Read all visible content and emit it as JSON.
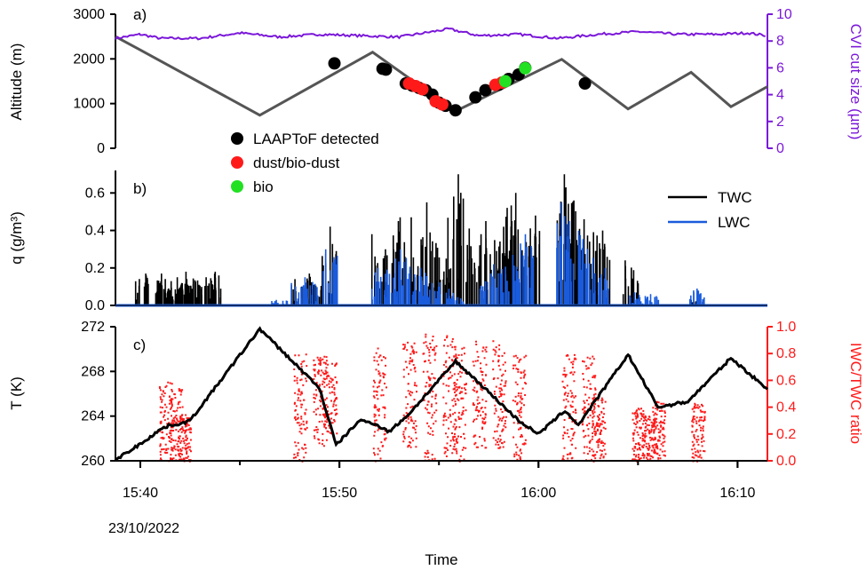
{
  "chart_data": [
    {
      "panel_label": "a)",
      "type": "line",
      "ylabel": "Altitude (m)",
      "ylim": [
        0,
        3000
      ],
      "yticks": [
        0,
        1000,
        2000,
        3000
      ],
      "y2label": "CVI cut size (µm)",
      "y2lim": [
        0,
        10
      ],
      "y2ticks": [
        0,
        2,
        4,
        6,
        8,
        10
      ],
      "colors": {
        "altitude": "#555555",
        "cvi": "#7b17d9",
        "laaptof": "#000000",
        "dust": "#ff1a1a",
        "bio": "#22e022"
      },
      "series": [
        {
          "name": "Altitude",
          "axis": "left",
          "x": [
            "15:38:45",
            "15:40:00",
            "15:46:00",
            "15:51:40",
            "15:55:50",
            "16:01:10",
            "16:04:30",
            "16:07:40",
            "16:09:40",
            "16:11:30"
          ],
          "y": [
            2500,
            2200,
            740,
            2150,
            830,
            1990,
            880,
            1700,
            930,
            1380
          ]
        },
        {
          "name": "CVI cut size",
          "axis": "right",
          "x": [
            "15:38:45",
            "15:40:00",
            "15:41:00",
            "15:43:00",
            "15:45:00",
            "15:47:00",
            "15:49:00",
            "15:51:00",
            "15:53:00",
            "15:55:30",
            "15:57:00",
            "15:59:00",
            "16:01:00",
            "16:03:00",
            "16:05:00",
            "16:07:00",
            "16:09:00",
            "16:10:30",
            "16:11:30"
          ],
          "y": [
            8.2,
            8.5,
            8.2,
            8.2,
            8.6,
            8.3,
            8.5,
            8.4,
            8.3,
            8.9,
            8.4,
            8.5,
            8.2,
            8.5,
            8.7,
            8.5,
            8.5,
            8.6,
            8.4
          ]
        }
      ],
      "markers": [
        {
          "name": "LAAPToF detected",
          "points": [
            [
              "15:49:45",
              1900
            ],
            [
              "15:52:10",
              1780
            ],
            [
              "15:52:20",
              1760
            ],
            [
              "15:53:20",
              1450
            ],
            [
              "15:53:40",
              1400
            ],
            [
              "15:54:00",
              1350
            ],
            [
              "15:54:20",
              1300
            ],
            [
              "15:54:40",
              1200
            ],
            [
              "15:55:00",
              1020
            ],
            [
              "15:55:20",
              950
            ],
            [
              "15:55:50",
              850
            ],
            [
              "15:56:50",
              1140
            ],
            [
              "15:57:20",
              1300
            ],
            [
              "15:58:00",
              1420
            ],
            [
              "15:58:30",
              1550
            ],
            [
              "15:59:00",
              1650
            ],
            [
              "15:59:20",
              1800
            ],
            [
              "16:02:20",
              1450
            ]
          ]
        },
        {
          "name": "dust/bio-dust",
          "points": [
            [
              "15:53:30",
              1450
            ],
            [
              "15:53:50",
              1390
            ],
            [
              "15:54:10",
              1320
            ],
            [
              "15:54:50",
              1050
            ],
            [
              "15:55:10",
              980
            ],
            [
              "15:57:50",
              1420
            ],
            [
              "15:58:10",
              1470
            ]
          ]
        },
        {
          "name": "bio",
          "points": [
            [
              "15:58:20",
              1500
            ],
            [
              "15:59:20",
              1790
            ]
          ]
        }
      ]
    },
    {
      "panel_label": "b)",
      "type": "line",
      "ylabel": "q (g/m³)",
      "ylim": [
        0,
        0.72
      ],
      "yticks": [
        "0.0",
        "0.2",
        "0.4",
        "0.6"
      ],
      "series": [
        {
          "name": "TWC",
          "bursts": [
            [
              "15:40:10",
              0.17
            ],
            [
              "15:40:40",
              0.16
            ],
            [
              "15:41:10",
              0.13
            ],
            [
              "15:41:20",
              0.17
            ],
            [
              "15:41:40",
              0.12
            ],
            [
              "15:42:00",
              0.15
            ],
            [
              "15:42:20",
              0.13
            ],
            [
              "15:42:40",
              0.18
            ],
            [
              "15:42:55",
              0.15
            ],
            [
              "15:43:20",
              0.17
            ],
            [
              "15:43:40",
              0.18
            ],
            [
              "15:48:00",
              0.14
            ],
            [
              "15:48:40",
              0.17
            ],
            [
              "15:49:30",
              0.42
            ],
            [
              "15:52:00",
              0.38
            ],
            [
              "15:52:40",
              0.47
            ],
            [
              "15:53:20",
              0.45
            ],
            [
              "15:54:00",
              0.55
            ],
            [
              "15:54:40",
              0.39
            ],
            [
              "15:55:20",
              0.25
            ],
            [
              "15:55:50",
              0.7
            ],
            [
              "15:56:30",
              0.41
            ],
            [
              "15:57:00",
              0.38
            ],
            [
              "15:57:40",
              0.45
            ],
            [
              "15:58:20",
              0.42
            ],
            [
              "15:58:40",
              0.6
            ],
            [
              "15:59:00",
              0.45
            ],
            [
              "15:59:40",
              0.48
            ],
            [
              "16:01:20",
              0.7
            ],
            [
              "16:01:40",
              0.63
            ],
            [
              "16:02:00",
              0.56
            ],
            [
              "16:02:40",
              0.46
            ],
            [
              "16:03:10",
              0.4
            ],
            [
              "16:04:40",
              0.24
            ],
            [
              "16:08:00",
              0.03
            ]
          ]
        },
        {
          "name": "LWC",
          "bursts": [
            [
              "15:47:00",
              0.03
            ],
            [
              "15:48:00",
              0.12
            ],
            [
              "15:48:40",
              0.15
            ],
            [
              "15:49:30",
              0.3
            ],
            [
              "15:52:00",
              0.2
            ],
            [
              "15:52:40",
              0.25
            ],
            [
              "15:53:20",
              0.3
            ],
            [
              "15:54:00",
              0.2
            ],
            [
              "15:54:40",
              0.15
            ],
            [
              "15:55:20",
              0.1
            ],
            [
              "15:55:50",
              0.05
            ],
            [
              "15:57:20",
              0.17
            ],
            [
              "15:58:00",
              0.22
            ],
            [
              "15:58:40",
              0.27
            ],
            [
              "15:59:20",
              0.38
            ],
            [
              "16:01:20",
              0.55
            ],
            [
              "16:01:50",
              0.45
            ],
            [
              "16:02:30",
              0.35
            ],
            [
              "16:03:10",
              0.2
            ],
            [
              "16:05:00",
              0.07
            ],
            [
              "16:05:40",
              0.06
            ],
            [
              "16:08:00",
              0.09
            ]
          ]
        }
      ]
    },
    {
      "panel_label": "c)",
      "type": "line",
      "ylabel": "T (K)",
      "ylim": [
        260,
        272
      ],
      "yticks": [
        260,
        264,
        268,
        272
      ],
      "y2label": "IWC/TWC ratio",
      "y2lim": [
        0,
        1
      ],
      "y2ticks": [
        "0.0",
        "0.2",
        "0.4",
        "0.6",
        "0.8",
        "1.0"
      ],
      "xlabel": "Time",
      "xticks": [
        "15:40",
        "15:50",
        "16:00",
        "16:10"
      ],
      "date_label": "23/10/2022",
      "series": [
        {
          "name": "T",
          "axis": "left",
          "x": [
            "15:38:45",
            "15:40:00",
            "15:41:00",
            "15:41:30",
            "15:42:00",
            "15:42:30",
            "15:46:00",
            "15:49:00",
            "15:49:50",
            "15:51:00",
            "15:51:40",
            "15:52:30",
            "15:53:30",
            "15:55:50",
            "15:57:00",
            "15:59:00",
            "16:00:00",
            "16:01:20",
            "16:02:00",
            "16:04:30",
            "16:06:00",
            "16:07:30",
            "16:09:40",
            "16:11:30"
          ],
          "y": [
            260.1,
            261.5,
            262.8,
            263.2,
            263.3,
            263.6,
            271.8,
            266.5,
            261.4,
            263.6,
            263.4,
            262.6,
            264.2,
            268.9,
            267.0,
            263.6,
            262.4,
            264.5,
            263.2,
            269.5,
            264.8,
            265.3,
            269.2,
            266.4
          ]
        },
        {
          "name": "IWC/TWC ratio",
          "axis": "right",
          "mark": "scatter",
          "clusters": [
            [
              "15:41:15",
              0.0,
              0.6
            ],
            [
              "15:41:45",
              0.0,
              0.55
            ],
            [
              "15:42:10",
              0.0,
              0.35
            ],
            [
              "15:48:00",
              0.0,
              0.8
            ],
            [
              "15:49:00",
              0.1,
              0.8
            ],
            [
              "15:49:30",
              0.2,
              0.75
            ],
            [
              "15:52:00",
              0.0,
              0.85
            ],
            [
              "15:53:30",
              0.1,
              0.9
            ],
            [
              "15:54:30",
              0.0,
              0.95
            ],
            [
              "15:55:30",
              0.0,
              0.95
            ],
            [
              "15:56:00",
              0.0,
              0.85
            ],
            [
              "15:57:00",
              0.1,
              0.9
            ],
            [
              "15:58:00",
              0.1,
              0.9
            ],
            [
              "15:59:00",
              0.0,
              0.8
            ],
            [
              "16:01:30",
              0.0,
              0.8
            ],
            [
              "16:02:30",
              0.0,
              0.8
            ],
            [
              "16:03:00",
              0.0,
              0.5
            ],
            [
              "16:05:00",
              0.0,
              0.4
            ],
            [
              "16:05:30",
              0.0,
              0.35
            ],
            [
              "16:06:00",
              0.0,
              0.45
            ],
            [
              "16:08:00",
              0.0,
              0.45
            ]
          ]
        }
      ]
    }
  ],
  "legend_a": [
    {
      "label": "LAAPToF detected",
      "color": "#000000"
    },
    {
      "label": "dust/bio-dust",
      "color": "#ff1a1a"
    },
    {
      "label": "bio",
      "color": "#22e022"
    }
  ],
  "legend_b": [
    {
      "label": "TWC",
      "color": "#000000"
    },
    {
      "label": "LWC",
      "color": "#1a5bdc"
    }
  ]
}
